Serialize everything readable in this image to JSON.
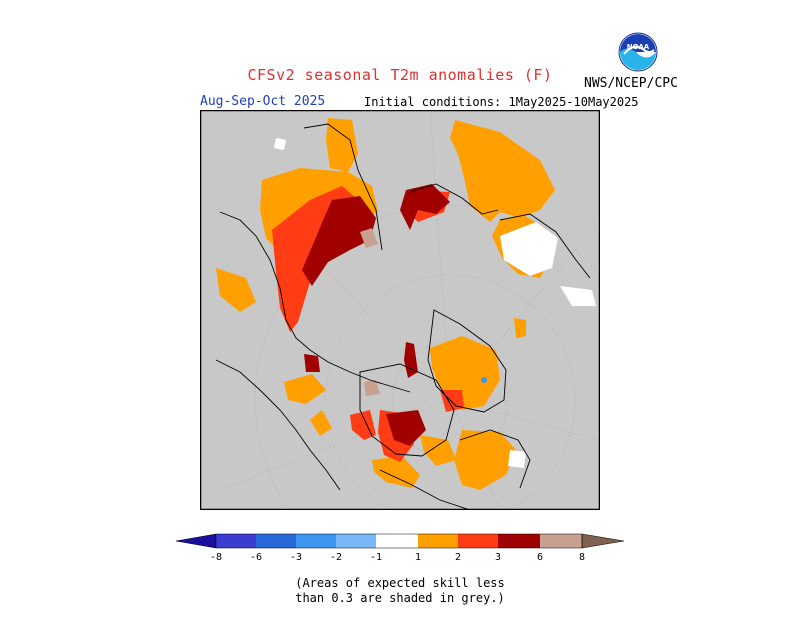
{
  "header": {
    "title": "CFSv2 seasonal T2m anomalies (F)",
    "org": "NWS/NCEP/CPC",
    "season": "Aug-Sep-Oct 2025",
    "initial_conditions": "Initial conditions: 1May2025-10May2025"
  },
  "logo": {
    "icon": "noaa-logo-icon",
    "text": "NOAA"
  },
  "map": {
    "projection": "north-polar-stereographic",
    "background_color": "#c8c8c8",
    "skill_mask_color": "#c8c8c8"
  },
  "legend": {
    "tick_labels": [
      "-8",
      "-6",
      "-3",
      "-2",
      "-1",
      "1",
      "2",
      "3",
      "6",
      "8"
    ],
    "colors": {
      "below_8": "#1c0fa0",
      "n8_n6": "#3c3cd0",
      "n6_n3": "#2868d8",
      "n3_n2": "#3c96f0",
      "n2_n1": "#78b8f8",
      "n1_1": "#ffffff",
      "p1_p2": "#ffa000",
      "p2_p3": "#ff3c14",
      "p3_p6": "#a00000",
      "p6_p8": "#c8a090",
      "above_8": "#806050"
    }
  },
  "note": {
    "line1": "(Areas of expected skill less",
    "line2": "than 0.3 are shaded in grey.)"
  }
}
